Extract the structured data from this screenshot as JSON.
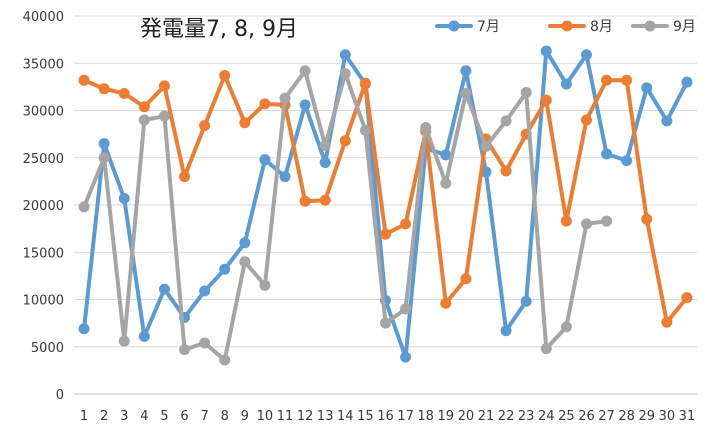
{
  "chart_data": {
    "type": "line",
    "title": "発電量7, 8, 9月",
    "xlabel": "",
    "ylabel": "",
    "categories": [
      "1",
      "2",
      "3",
      "4",
      "5",
      "6",
      "7",
      "8",
      "9",
      "10",
      "11",
      "12",
      "13",
      "14",
      "15",
      "16",
      "17",
      "18",
      "19",
      "20",
      "21",
      "22",
      "23",
      "24",
      "25",
      "26",
      "27",
      "28",
      "29",
      "30",
      "31"
    ],
    "ylim": [
      0,
      40000
    ],
    "yticks": [
      0,
      5000,
      10000,
      15000,
      20000,
      25000,
      30000,
      35000,
      40000
    ],
    "grid": true,
    "legend_position": "top-right",
    "series": [
      {
        "name": "7月",
        "color": "#5b9bd5",
        "values": [
          6900,
          26500,
          20700,
          6100,
          11100,
          8100,
          10900,
          13200,
          16000,
          24800,
          23000,
          30600,
          24500,
          35900,
          32800,
          9900,
          3900,
          26000,
          25300,
          34200,
          23500,
          6700,
          9800,
          36300,
          32800,
          35900,
          25400,
          24700,
          32400,
          28900,
          33000
        ]
      },
      {
        "name": "8月",
        "color": "#ed7d31",
        "values": [
          33200,
          32300,
          31800,
          30400,
          32600,
          23000,
          28400,
          33700,
          28700,
          30700,
          30600,
          20400,
          20500,
          26800,
          32900,
          16900,
          18000,
          27800,
          9600,
          12200,
          27000,
          23600,
          27500,
          31100,
          18300,
          29000,
          33200,
          33200,
          18500,
          7600,
          10200
        ]
      },
      {
        "name": "9月",
        "color": "#a5a5a5",
        "values": [
          19800,
          25000,
          5600,
          29000,
          29400,
          4700,
          5400,
          3600,
          14000,
          11500,
          31300,
          34200,
          26300,
          33900,
          27900,
          7500,
          9000,
          28200,
          22300,
          31800,
          26200,
          28900,
          31900,
          4800,
          7100,
          18000,
          18300,
          null,
          null,
          null,
          null
        ]
      }
    ]
  }
}
